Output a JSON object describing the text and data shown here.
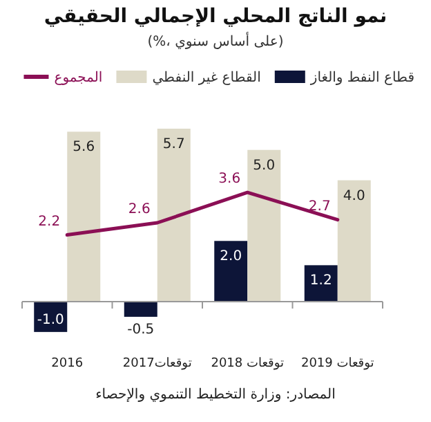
{
  "chart_data": {
    "type": "bar",
    "title": "نمو الناتج المحلي الإجمالي الحقيقي",
    "subtitle": "(%، على أساس سنوي)",
    "categories": [
      "2016",
      "توقعات2017",
      "توقعات 2018",
      "توقعات 2019"
    ],
    "series": [
      {
        "name": "قطاع النفط والغاز",
        "color": "#0d1538",
        "values": [
          -1.0,
          -0.5,
          2.0,
          1.2
        ],
        "value_labels": [
          "-1.0",
          "-0.5",
          "2.0",
          "1.2"
        ]
      },
      {
        "name": "القطاع غير النفطي",
        "color": "#dedac8",
        "values": [
          5.6,
          5.7,
          5.0,
          4.0
        ],
        "value_labels": [
          "5.6",
          "5.7",
          "5.0",
          "4.0"
        ]
      },
      {
        "name": "المجموع",
        "type": "line",
        "color": "#8b0f55",
        "values": [
          2.2,
          2.6,
          3.6,
          2.7
        ],
        "value_labels": [
          "2.2",
          "2.6",
          "3.6",
          "2.7"
        ]
      }
    ],
    "legend": "top",
    "marker": "none",
    "annotations": [
      "المصادر: وزارة التخطيط التنموي والإحصاء"
    ]
  }
}
